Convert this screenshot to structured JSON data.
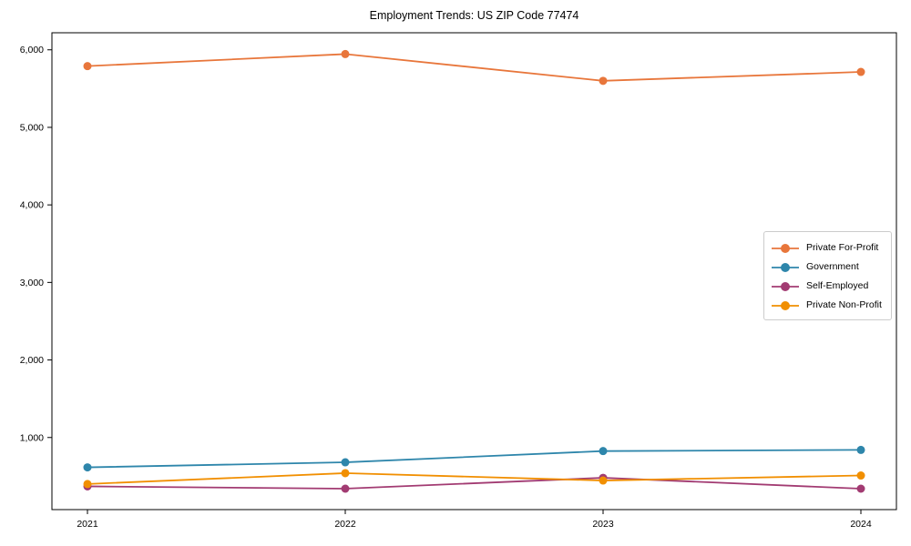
{
  "title": "Employment Trends: US ZIP Code 77474",
  "chart_data": {
    "type": "line",
    "title": "Employment Trends: US ZIP Code 77474",
    "xlabel": "",
    "ylabel": "",
    "categories": [
      "2021",
      "2022",
      "2023",
      "2024"
    ],
    "series": [
      {
        "name": "Private For-Profit",
        "color": "#E8763B",
        "values": [
          5790,
          5945,
          5600,
          5715
        ]
      },
      {
        "name": "Government",
        "color": "#2E86AB",
        "values": [
          615,
          680,
          825,
          840
        ]
      },
      {
        "name": "Self-Employed",
        "color": "#A23B72",
        "values": [
          370,
          340,
          480,
          340
        ]
      },
      {
        "name": "Private Non-Profit",
        "color": "#F18F01",
        "values": [
          400,
          540,
          445,
          510
        ]
      }
    ],
    "ylim": [
      70,
      6220
    ],
    "yticks": [
      1000,
      2000,
      3000,
      4000,
      5000,
      6000
    ],
    "grid": false,
    "legend_position": "center-right",
    "axis_color": "#000000",
    "tick_label_color": "#000000"
  }
}
